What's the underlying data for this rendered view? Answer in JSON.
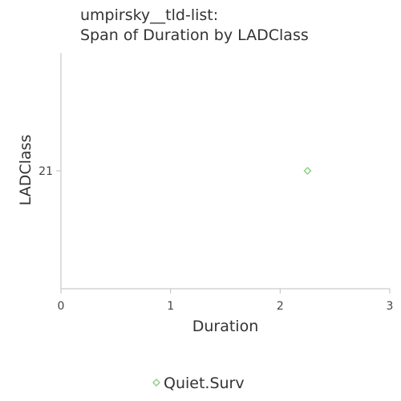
{
  "chart_data": {
    "type": "scatter",
    "title_lines": [
      "umpirsky__tld-list:",
      "Span of Duration by LADClass"
    ],
    "xlabel": "Duration",
    "ylabel": "LADClass",
    "xlim": [
      0,
      3
    ],
    "x_ticks": [
      0,
      1,
      2,
      3
    ],
    "y_categories": [
      "21"
    ],
    "series": [
      {
        "name": "Quiet.Surv",
        "color": "#8fd18a",
        "marker": "diamond",
        "points": [
          {
            "x": 2.25,
            "y": "21"
          }
        ]
      }
    ],
    "legend_position": "bottom-center"
  }
}
